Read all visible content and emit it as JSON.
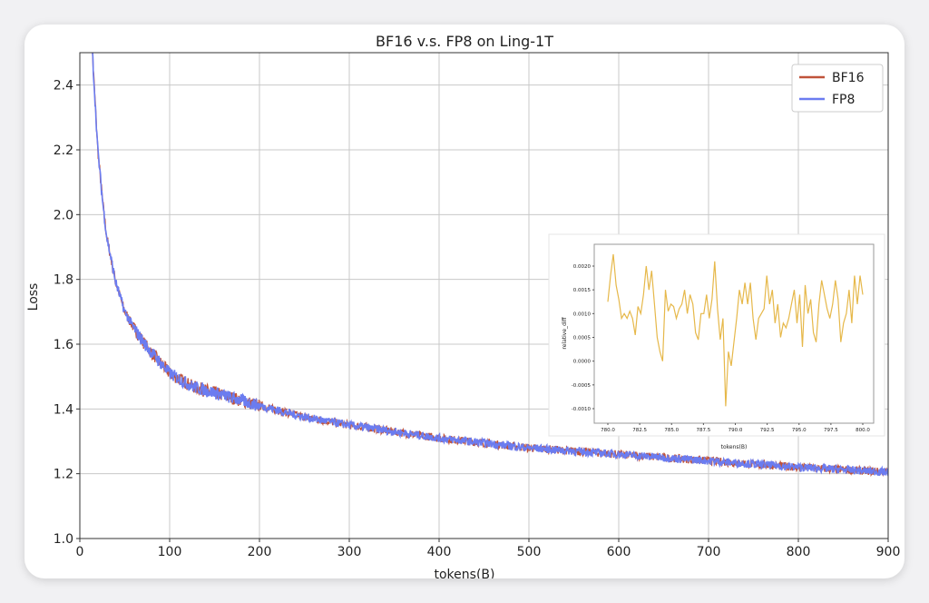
{
  "chart_data": {
    "type": "line",
    "title": "BF16 v.s. FP8 on Ling-1T",
    "xlabel": "tokens(B)",
    "ylabel": "Loss",
    "xlim": [
      0,
      900
    ],
    "ylim": [
      1.0,
      2.5
    ],
    "xticks": [
      0,
      100,
      200,
      300,
      400,
      500,
      600,
      700,
      800,
      900
    ],
    "yticks": [
      1.0,
      1.2,
      1.4,
      1.6,
      1.8,
      2.0,
      2.2,
      2.4
    ],
    "grid": true,
    "legend_position": "top-right",
    "series": [
      {
        "name": "BF16",
        "color": "#c0533a",
        "x": [
          12,
          15,
          20,
          25,
          30,
          40,
          50,
          60,
          75,
          100,
          125,
          150,
          200,
          250,
          300,
          400,
          500,
          600,
          700,
          800,
          900
        ],
        "y": [
          2.6,
          2.45,
          2.2,
          2.05,
          1.93,
          1.79,
          1.7,
          1.65,
          1.59,
          1.51,
          1.47,
          1.45,
          1.41,
          1.375,
          1.35,
          1.31,
          1.28,
          1.26,
          1.24,
          1.22,
          1.205
        ]
      },
      {
        "name": "FP8",
        "color": "#6b7cf0",
        "x": [
          12,
          15,
          20,
          25,
          30,
          40,
          50,
          60,
          75,
          100,
          125,
          150,
          200,
          250,
          300,
          400,
          500,
          600,
          700,
          800,
          900
        ],
        "y": [
          2.6,
          2.45,
          2.2,
          2.05,
          1.93,
          1.79,
          1.7,
          1.65,
          1.59,
          1.51,
          1.47,
          1.45,
          1.41,
          1.375,
          1.35,
          1.31,
          1.28,
          1.26,
          1.24,
          1.22,
          1.205
        ]
      }
    ],
    "inset": {
      "type": "line",
      "xlabel": "tokens(B)",
      "ylabel": "relative_diff",
      "xlim": [
        780,
        800
      ],
      "ylim": [
        -0.001,
        0.002
      ],
      "xticks": [
        "780.0",
        "782.5",
        "785.0",
        "787.5",
        "790.0",
        "792.5",
        "795.0",
        "797.5",
        "800.0"
      ],
      "yticks": [
        "0.0020",
        "0.0015",
        "0.0010",
        "0.0005",
        "0.0000",
        "-0.0005",
        "-0.0010"
      ],
      "color": "#e6b84a",
      "values": [
        0.00125,
        0.0018,
        0.00225,
        0.0016,
        0.0013,
        0.0009,
        0.001,
        0.0009,
        0.00105,
        0.0009,
        0.00055,
        0.00115,
        0.001,
        0.0014,
        0.002,
        0.0015,
        0.0019,
        0.0012,
        0.0005,
        0.0002,
        0.0,
        0.0015,
        0.00105,
        0.0012,
        0.00115,
        0.0009,
        0.0011,
        0.0012,
        0.0015,
        0.001,
        0.0014,
        0.0012,
        0.0006,
        0.00045,
        0.001,
        0.001,
        0.0014,
        0.0009,
        0.0013,
        0.0021,
        0.0011,
        0.00045,
        0.0009,
        -0.00095,
        0.0002,
        -0.0001,
        0.0004,
        0.0009,
        0.0015,
        0.0012,
        0.00165,
        0.0012,
        0.00165,
        0.0009,
        0.00045,
        0.0009,
        0.001,
        0.0011,
        0.0018,
        0.0012,
        0.0015,
        0.0008,
        0.0012,
        0.0005,
        0.0008,
        0.0007,
        0.0009,
        0.0012,
        0.0015,
        0.0008,
        0.0014,
        0.0003,
        0.0016,
        0.001,
        0.0013,
        0.0006,
        0.0004,
        0.0012,
        0.0017,
        0.0014,
        0.0011,
        0.0009,
        0.0012,
        0.0017,
        0.0013,
        0.0004,
        0.0008,
        0.001,
        0.0015,
        0.0008,
        0.0018,
        0.0012,
        0.0018,
        0.0014
      ]
    }
  }
}
